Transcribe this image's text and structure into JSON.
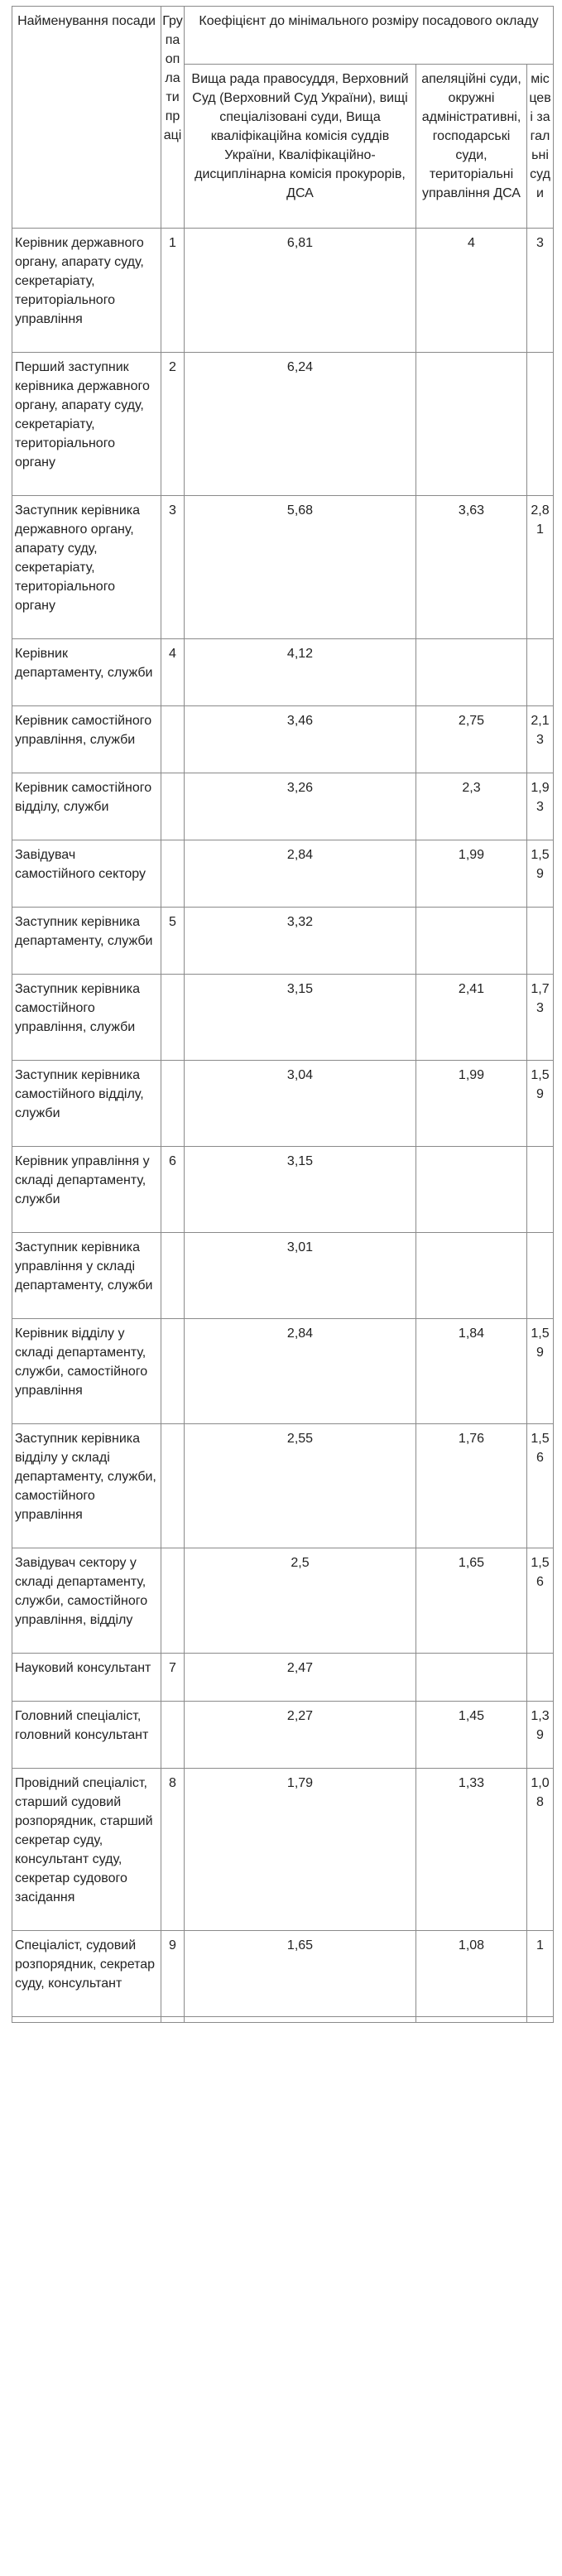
{
  "header": {
    "position": "Найменування посади",
    "group": "Група оплати праці",
    "coefficient": "Коефіцієнт до мінімального розміру посадового окладу",
    "col_high": "Вища рада правосуддя, Верховний Суд (Верховний Суд України), вищі спеціалізовані суди, Вища кваліфікаційна комісія суддів України, Кваліфікаційно-дисциплінарна комісія прокурорів, ДСА",
    "col_appeal": "апеляційні суди, окружні адміністративні, господарські суди, територіальні управління ДСА",
    "col_local": "місцеві загальні суди"
  },
  "rows": [
    {
      "name": "Керівник державного органу, апарату суду, секретаріату, територіального управління",
      "group": "1",
      "high": "6,81",
      "appeal": "4",
      "local": "3"
    },
    {
      "name": "Перший заступник керівника державного органу, апарату суду, секретаріату, територіального органу",
      "group": "2",
      "high": "6,24",
      "appeal": "",
      "local": ""
    },
    {
      "name": "Заступник керівника державного органу, апарату суду, секретаріату, територіального органу",
      "group": "3",
      "high": "5,68",
      "appeal": "3,63",
      "local": "2,81"
    },
    {
      "name": "Керівник департаменту, служби",
      "group": "4",
      "high": "4,12",
      "appeal": "",
      "local": ""
    },
    {
      "name": "Керівник самостійного управління, служби",
      "group": "",
      "high": "3,46",
      "appeal": "2,75",
      "local": "2,13"
    },
    {
      "name": "Керівник самостійного відділу, служби",
      "group": "",
      "high": "3,26",
      "appeal": "2,3",
      "local": "1,93"
    },
    {
      "name": "Завідувач самостійного сектору",
      "group": "",
      "high": "2,84",
      "appeal": "1,99",
      "local": "1,59"
    },
    {
      "name": "Заступник керівника департаменту, служби",
      "group": "5",
      "high": "3,32",
      "appeal": "",
      "local": ""
    },
    {
      "name": "Заступник керівника самостійного управління, служби",
      "group": "",
      "high": "3,15",
      "appeal": "2,41",
      "local": "1,73"
    },
    {
      "name": "Заступник керівника самостійного відділу, служби",
      "group": "",
      "high": "3,04",
      "appeal": "1,99",
      "local": "1,59"
    },
    {
      "name": "Керівник управління у складі департаменту, служби",
      "group": "6",
      "high": "3,15",
      "appeal": "",
      "local": ""
    },
    {
      "name": "Заступник керівника управління у складі департаменту, служби",
      "group": "",
      "high": "3,01",
      "appeal": "",
      "local": ""
    },
    {
      "name": "Керівник відділу у складі департаменту, служби, самостійного управління",
      "group": "",
      "high": "2,84",
      "appeal": "1,84",
      "local": "1,59"
    },
    {
      "name": "Заступник керівника відділу у складі департаменту, служби, самостійного управління",
      "group": "",
      "high": "2,55",
      "appeal": "1,76",
      "local": "1,56"
    },
    {
      "name": "Завідувач сектору у складі департаменту, служби, самостійного управління, відділу",
      "group": "",
      "high": "2,5",
      "appeal": "1,65",
      "local": "1,56"
    },
    {
      "name": "Науковий консультант",
      "group": "7",
      "high": "2,47",
      "appeal": "",
      "local": ""
    },
    {
      "name": "Головний спеціаліст, головний консультант",
      "group": "",
      "high": "2,27",
      "appeal": "1,45",
      "local": "1,39"
    },
    {
      "name": "Провідний спеціаліст, старший судовий розпорядник, старший секретар суду, консультант суду, секретар судового засідання",
      "group": "8",
      "high": "1,79",
      "appeal": "1,33",
      "local": "1,08"
    },
    {
      "name": "Спеціаліст, судовий розпорядник, секретар суду, консультант",
      "group": "9",
      "high": "1,65",
      "appeal": "1,08",
      "local": "1"
    }
  ]
}
